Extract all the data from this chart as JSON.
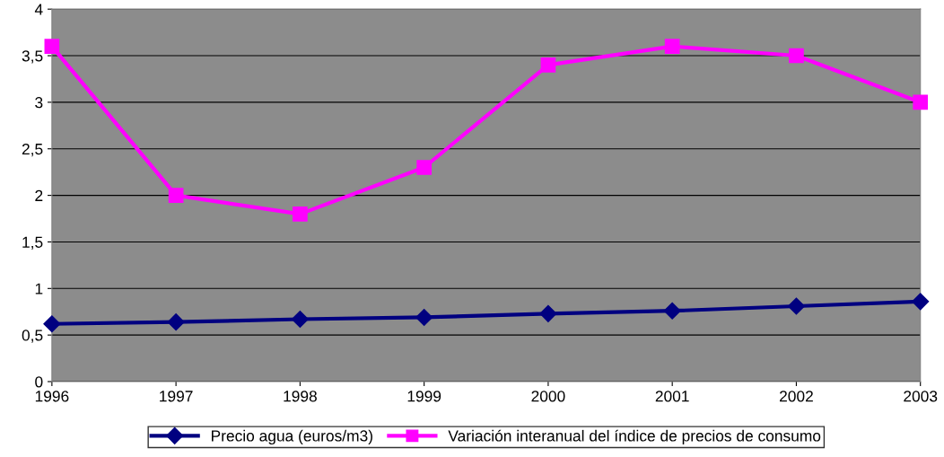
{
  "chart_data": {
    "type": "line",
    "x": [
      1996,
      1997,
      1998,
      1999,
      2000,
      2001,
      2002,
      2003
    ],
    "xlim": [
      1996,
      2003
    ],
    "xticks": [
      1996,
      1997,
      1998,
      1999,
      2000,
      2001,
      2002,
      2003
    ],
    "ylim": [
      0,
      4
    ],
    "yticks": [
      0,
      {
        "value": 0.5,
        "label": "0,5"
      },
      1,
      {
        "value": 1.5,
        "label": "1,5"
      },
      2,
      {
        "value": 2.5,
        "label": "2,5"
      },
      3,
      {
        "value": 3.5,
        "label": "3,5"
      },
      4
    ],
    "grid": "y",
    "legend": "bottom",
    "series": [
      {
        "name": "Precio agua (euros/m3)",
        "color": "#000080",
        "marker": "diamond",
        "values": [
          0.62,
          0.64,
          0.67,
          0.69,
          0.73,
          0.76,
          0.81,
          0.86
        ]
      },
      {
        "name": "Variación interanual del índice de precios de consumo",
        "color": "#ff00ff",
        "marker": "square",
        "values": [
          3.6,
          2.0,
          1.8,
          2.3,
          3.4,
          3.6,
          3.5,
          3.0
        ]
      }
    ]
  }
}
